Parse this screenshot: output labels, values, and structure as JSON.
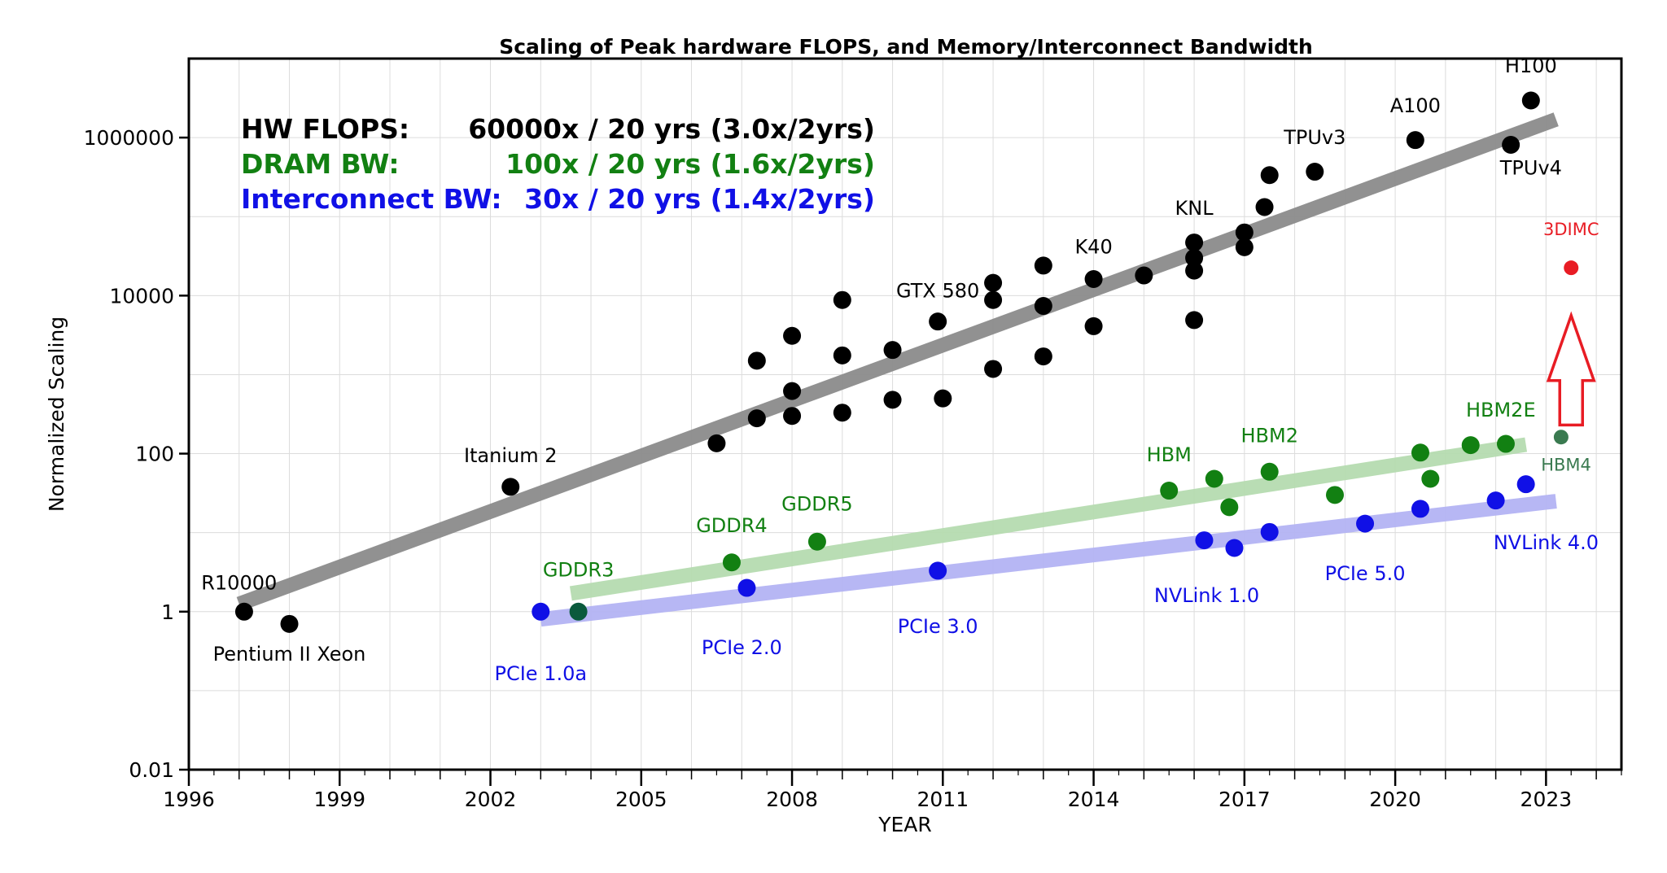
{
  "chart_data": {
    "type": "scatter",
    "title": "Scaling of Peak hardware FLOPS, and Memory/Interconnect Bandwidth",
    "xlabel": "YEAR",
    "ylabel": "Normalized Scaling",
    "xlim": [
      1996,
      2024.5
    ],
    "ylim": [
      0.01,
      10000000
    ],
    "yscale": "log",
    "grid": true,
    "x_ticks": [
      1996,
      1999,
      2002,
      2005,
      2008,
      2011,
      2014,
      2017,
      2020,
      2023
    ],
    "y_ticks": [
      0.01,
      1,
      100,
      10000,
      1000000
    ],
    "y_tick_labels": [
      "0.01",
      "1",
      "100",
      "10000",
      "1000000"
    ],
    "legend_lines": [
      {
        "label": "HW FLOPS:",
        "value": "60000x / 20 yrs (3.0x/2yrs)",
        "color": "#000000"
      },
      {
        "label": "DRAM BW:",
        "value": "100x / 20 yrs (1.6x/2yrs)",
        "color": "#128012"
      },
      {
        "label": "Interconnect BW:",
        "value": "30x / 20 yrs (1.4x/2yrs)",
        "color": "#1010e6"
      }
    ],
    "trend_lines": [
      {
        "name": "HW FLOPS",
        "color": "#8c8c8c",
        "x": [
          1997,
          2023.2
        ],
        "y": [
          1.25,
          1700000
        ]
      },
      {
        "name": "DRAM BW",
        "color": "#b6dcb0",
        "x": [
          2003.6,
          2022.6
        ],
        "y": [
          1.7,
          130
        ]
      },
      {
        "name": "Interconnect BW",
        "color": "#b4b4f4",
        "x": [
          2003,
          2023.2
        ],
        "y": [
          0.8,
          25
        ]
      }
    ],
    "series": [
      {
        "name": "HW FLOPS",
        "color": "#000000",
        "points": [
          {
            "x": 1997.1,
            "y": 1
          },
          {
            "x": 1998.0,
            "y": 0.7
          },
          {
            "x": 2002.4,
            "y": 38
          },
          {
            "x": 2006.5,
            "y": 135
          },
          {
            "x": 2007.3,
            "y": 280
          },
          {
            "x": 2007.3,
            "y": 1500
          },
          {
            "x": 2008.0,
            "y": 300
          },
          {
            "x": 2008.0,
            "y": 620
          },
          {
            "x": 2008.0,
            "y": 3100
          },
          {
            "x": 2009.0,
            "y": 330
          },
          {
            "x": 2009.0,
            "y": 1750
          },
          {
            "x": 2009.0,
            "y": 8800
          },
          {
            "x": 2010.0,
            "y": 480
          },
          {
            "x": 2010.0,
            "y": 2050
          },
          {
            "x": 2011.0,
            "y": 500
          },
          {
            "x": 2010.9,
            "y": 4700
          },
          {
            "x": 2012.0,
            "y": 1180
          },
          {
            "x": 2012.0,
            "y": 8800
          },
          {
            "x": 2012.0,
            "y": 14500
          },
          {
            "x": 2013.0,
            "y": 1700
          },
          {
            "x": 2013.0,
            "y": 7400
          },
          {
            "x": 2013.0,
            "y": 24000
          },
          {
            "x": 2014.0,
            "y": 4100
          },
          {
            "x": 2014.0,
            "y": 16200
          },
          {
            "x": 2015.0,
            "y": 18000
          },
          {
            "x": 2016.0,
            "y": 4900
          },
          {
            "x": 2016.0,
            "y": 20700
          },
          {
            "x": 2016.0,
            "y": 30000
          },
          {
            "x": 2016.0,
            "y": 47000
          },
          {
            "x": 2017.0,
            "y": 41000
          },
          {
            "x": 2017.0,
            "y": 63000
          },
          {
            "x": 2017.4,
            "y": 132000
          },
          {
            "x": 2017.5,
            "y": 335000
          },
          {
            "x": 2018.4,
            "y": 370000
          },
          {
            "x": 2020.4,
            "y": 930000
          },
          {
            "x": 2022.3,
            "y": 810000
          },
          {
            "x": 2022.7,
            "y": 2950000
          }
        ]
      },
      {
        "name": "DRAM BW",
        "color": "#128012",
        "points": [
          {
            "x": 2003.75,
            "y": 1,
            "color": "#0a5a3c"
          },
          {
            "x": 2006.8,
            "y": 4.2
          },
          {
            "x": 2008.5,
            "y": 7.7
          },
          {
            "x": 2015.5,
            "y": 34
          },
          {
            "x": 2016.4,
            "y": 48
          },
          {
            "x": 2016.7,
            "y": 21
          },
          {
            "x": 2017.5,
            "y": 59
          },
          {
            "x": 2018.8,
            "y": 30
          },
          {
            "x": 2020.5,
            "y": 103
          },
          {
            "x": 2020.7,
            "y": 48
          },
          {
            "x": 2021.5,
            "y": 128
          },
          {
            "x": 2022.2,
            "y": 133
          },
          {
            "x": 2023.3,
            "y": 162,
            "color": "#3a7a50",
            "size": "small"
          }
        ]
      },
      {
        "name": "Interconnect BW",
        "color": "#1010e6",
        "points": [
          {
            "x": 2003.0,
            "y": 1
          },
          {
            "x": 2007.1,
            "y": 2
          },
          {
            "x": 2010.9,
            "y": 3.3
          },
          {
            "x": 2016.2,
            "y": 8
          },
          {
            "x": 2016.8,
            "y": 6.4
          },
          {
            "x": 2017.5,
            "y": 10.2
          },
          {
            "x": 2019.4,
            "y": 13
          },
          {
            "x": 2020.5,
            "y": 20
          },
          {
            "x": 2022.0,
            "y": 25.5
          },
          {
            "x": 2022.6,
            "y": 41
          }
        ]
      },
      {
        "name": "3DIMC",
        "color": "#e81c24",
        "points": [
          {
            "x": 2023.5,
            "y": 22500,
            "size": "small"
          }
        ]
      }
    ],
    "annotations": [
      {
        "text": "R10000",
        "x": 1997.0,
        "y": 1.9,
        "color": "#000000"
      },
      {
        "text": "Pentium II Xeon",
        "x": 1998.0,
        "y": 0.24,
        "color": "#000000"
      },
      {
        "text": "Itanium 2",
        "x": 2002.4,
        "y": 78,
        "color": "#000000"
      },
      {
        "text": "GTX 580",
        "x": 2010.9,
        "y": 9500,
        "color": "#000000"
      },
      {
        "text": "K40",
        "x": 2014.0,
        "y": 34000,
        "color": "#000000"
      },
      {
        "text": "KNL",
        "x": 2016.0,
        "y": 105000,
        "color": "#000000"
      },
      {
        "text": "TPUv3",
        "x": 2018.4,
        "y": 830000,
        "color": "#000000"
      },
      {
        "text": "A100",
        "x": 2020.4,
        "y": 2100000,
        "color": "#000000"
      },
      {
        "text": "H100",
        "x": 2022.7,
        "y": 6700000,
        "color": "#000000"
      },
      {
        "text": "TPUv4",
        "x": 2022.7,
        "y": 340000,
        "color": "#000000"
      },
      {
        "text": "3DIMC",
        "x": 2023.5,
        "y": 58000,
        "color": "#e81c24",
        "size": "small"
      },
      {
        "text": "GDDR3",
        "x": 2003.75,
        "y": 2.8,
        "color": "#128012"
      },
      {
        "text": "GDDR4",
        "x": 2006.8,
        "y": 10.2,
        "color": "#128012"
      },
      {
        "text": "GDDR5",
        "x": 2008.5,
        "y": 19,
        "color": "#128012"
      },
      {
        "text": "HBM",
        "x": 2015.5,
        "y": 80,
        "color": "#128012"
      },
      {
        "text": "HBM2",
        "x": 2017.5,
        "y": 140,
        "color": "#128012"
      },
      {
        "text": "HBM2E",
        "x": 2022.1,
        "y": 295,
        "color": "#128012"
      },
      {
        "text": "HBM4",
        "x": 2023.4,
        "y": 61,
        "color": "#3a7a50",
        "size": "small"
      },
      {
        "text": "PCIe 1.0a",
        "x": 2003.0,
        "y": 0.135,
        "color": "#1010e6"
      },
      {
        "text": "PCIe 2.0",
        "x": 2007.0,
        "y": 0.29,
        "color": "#1010e6"
      },
      {
        "text": "PCIe 3.0",
        "x": 2010.9,
        "y": 0.54,
        "color": "#1010e6"
      },
      {
        "text": "NVLink 1.0",
        "x": 2016.25,
        "y": 1.32,
        "color": "#1010e6"
      },
      {
        "text": "PCIe 5.0",
        "x": 2019.4,
        "y": 2.5,
        "color": "#1010e6"
      },
      {
        "text": "NVLink 4.0",
        "x": 2023.0,
        "y": 6.2,
        "color": "#1010e6"
      }
    ],
    "arrow": {
      "color": "#e81c24",
      "x": 2023.5,
      "y_from": 230,
      "y_to": 5600
    }
  }
}
